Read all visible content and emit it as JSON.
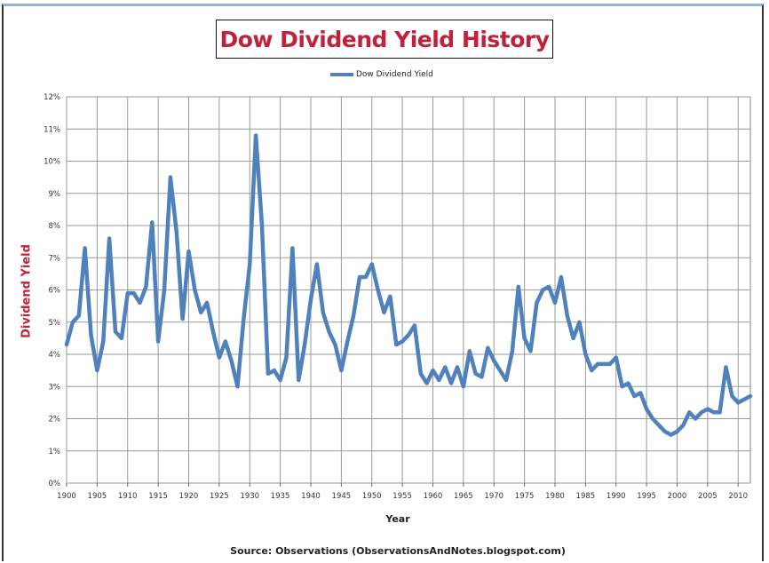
{
  "chart_data": {
    "type": "line",
    "title": "Dow Dividend Yield History",
    "xlabel": "Year",
    "ylabel": "Dividend Yield",
    "source": "Source: Observations  (ObservationsAndNotes.blogspot.com)",
    "legend_position": "top-center",
    "grid": true,
    "xlim": [
      1900,
      2012
    ],
    "ylim": [
      0,
      12
    ],
    "x_ticks": [
      "1900",
      "1905",
      "1910",
      "1915",
      "1920",
      "1925",
      "1930",
      "1935",
      "1940",
      "1945",
      "1950",
      "1955",
      "1960",
      "1965",
      "1970",
      "1975",
      "1980",
      "1985",
      "1990",
      "1995",
      "2000",
      "2005",
      "2010"
    ],
    "y_ticks": [
      "0%",
      "1%",
      "2%",
      "3%",
      "4%",
      "5%",
      "6%",
      "7%",
      "8%",
      "9%",
      "10%",
      "11%",
      "12%"
    ],
    "series": [
      {
        "name": "Dow Dividend Yield",
        "color": "#4f81bd",
        "x": [
          1900,
          1901,
          1902,
          1903,
          1904,
          1905,
          1906,
          1907,
          1908,
          1909,
          1910,
          1911,
          1912,
          1913,
          1914,
          1915,
          1916,
          1917,
          1918,
          1919,
          1920,
          1921,
          1922,
          1923,
          1924,
          1925,
          1926,
          1927,
          1928,
          1929,
          1930,
          1931,
          1932,
          1933,
          1934,
          1935,
          1936,
          1937,
          1938,
          1939,
          1940,
          1941,
          1942,
          1943,
          1944,
          1945,
          1946,
          1947,
          1948,
          1949,
          1950,
          1951,
          1952,
          1953,
          1954,
          1955,
          1956,
          1957,
          1958,
          1959,
          1960,
          1961,
          1962,
          1963,
          1964,
          1965,
          1966,
          1967,
          1968,
          1969,
          1970,
          1971,
          1972,
          1973,
          1974,
          1975,
          1976,
          1977,
          1978,
          1979,
          1980,
          1981,
          1982,
          1983,
          1984,
          1985,
          1986,
          1987,
          1988,
          1989,
          1990,
          1991,
          1992,
          1993,
          1994,
          1995,
          1996,
          1997,
          1998,
          1999,
          2000,
          2001,
          2002,
          2003,
          2004,
          2005,
          2006,
          2007,
          2008,
          2009,
          2010,
          2011,
          2012
        ],
        "values": [
          4.3,
          5.0,
          5.2,
          7.3,
          4.6,
          3.5,
          4.4,
          7.6,
          4.7,
          4.5,
          5.9,
          5.9,
          5.6,
          6.1,
          8.1,
          4.4,
          6.0,
          9.5,
          7.8,
          5.1,
          7.2,
          6.0,
          5.3,
          5.6,
          4.7,
          3.9,
          4.4,
          3.8,
          3.0,
          5.1,
          6.8,
          10.8,
          8.0,
          3.4,
          3.5,
          3.2,
          3.9,
          7.3,
          3.2,
          4.3,
          5.7,
          6.8,
          5.3,
          4.7,
          4.3,
          3.5,
          4.4,
          5.2,
          6.4,
          6.4,
          6.8,
          6.0,
          5.3,
          5.8,
          4.3,
          4.4,
          4.6,
          4.9,
          3.4,
          3.1,
          3.5,
          3.2,
          3.6,
          3.1,
          3.6,
          3.0,
          4.1,
          3.4,
          3.3,
          4.2,
          3.8,
          3.5,
          3.2,
          4.1,
          6.1,
          4.5,
          4.1,
          5.6,
          6.0,
          6.1,
          5.6,
          6.4,
          5.2,
          4.5,
          5.0,
          4.0,
          3.5,
          3.7,
          3.7,
          3.7,
          3.9,
          3.0,
          3.1,
          2.7,
          2.8,
          2.3,
          2.0,
          1.8,
          1.6,
          1.5,
          1.6,
          1.8,
          2.2,
          2.0,
          2.2,
          2.3,
          2.2,
          2.2,
          3.6,
          2.7,
          2.5,
          2.6,
          2.7
        ]
      }
    ]
  }
}
